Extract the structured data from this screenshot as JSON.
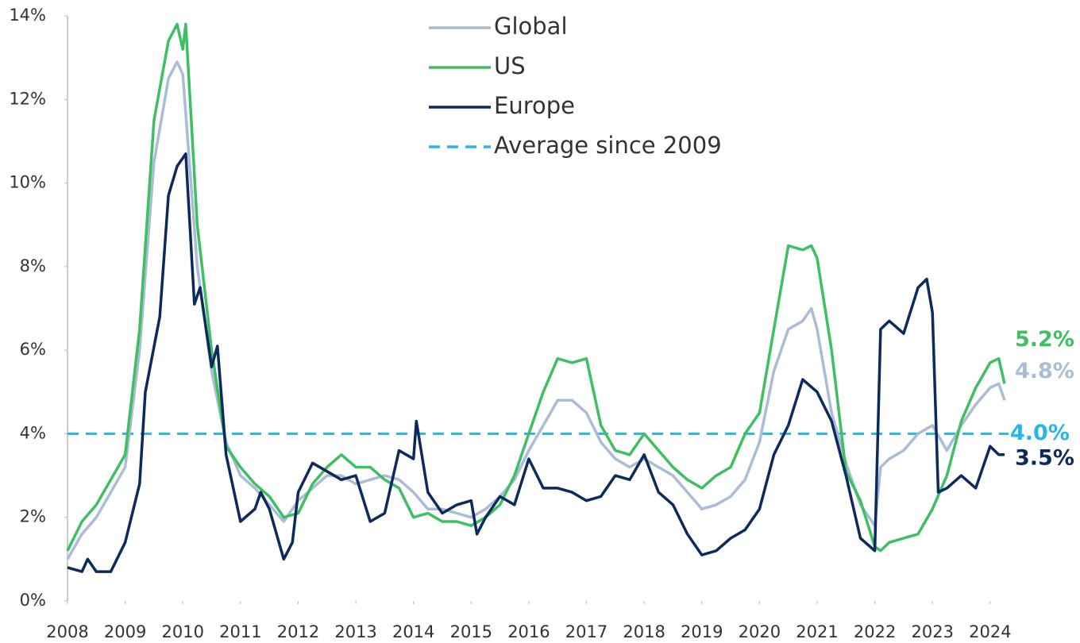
{
  "chart_data": {
    "type": "line",
    "xlim": [
      2008,
      2024.25
    ],
    "xticks": [
      2008,
      2009,
      2010,
      2011,
      2012,
      2013,
      2014,
      2015,
      2016,
      2017,
      2018,
      2019,
      2020,
      2021,
      2022,
      2023,
      2024
    ],
    "ylim": [
      0,
      14
    ],
    "yticks": [
      {
        "value": 0,
        "label": "0%"
      },
      {
        "value": 2,
        "label": "2%"
      },
      {
        "value": 4,
        "label": "4%"
      },
      {
        "value": 6,
        "label": "6%"
      },
      {
        "value": 8,
        "label": "8%"
      },
      {
        "value": 10,
        "label": "10%"
      },
      {
        "value": 12,
        "label": "12%"
      },
      {
        "value": 14,
        "label": "14%"
      }
    ],
    "legend": "top",
    "series": [
      {
        "name": "Global",
        "color": "#aabcd6",
        "last_label": "4.8%",
        "x": [
          2008,
          2008.25,
          2008.5,
          2008.75,
          2009,
          2009.25,
          2009.5,
          2009.75,
          2009.9,
          2010,
          2010.25,
          2010.5,
          2010.75,
          2011,
          2011.25,
          2011.5,
          2011.75,
          2012,
          2012.25,
          2012.5,
          2012.75,
          2013,
          2013.25,
          2013.5,
          2013.75,
          2014,
          2014.25,
          2014.5,
          2014.75,
          2015,
          2015.25,
          2015.5,
          2015.75,
          2016,
          2016.25,
          2016.5,
          2016.75,
          2017,
          2017.25,
          2017.5,
          2017.75,
          2018,
          2018.25,
          2018.5,
          2018.75,
          2019,
          2019.25,
          2019.5,
          2019.75,
          2020,
          2020.25,
          2020.5,
          2020.75,
          2020.9,
          2021,
          2021.25,
          2021.5,
          2021.75,
          2022,
          2022.1,
          2022.25,
          2022.5,
          2022.75,
          2023,
          2023.25,
          2023.5,
          2023.75,
          2024,
          2024.15,
          2024.25
        ],
        "values": [
          1.0,
          1.6,
          2.0,
          2.6,
          3.2,
          6.0,
          10.5,
          12.5,
          12.9,
          12.6,
          8.0,
          5.5,
          3.8,
          3.0,
          2.7,
          2.3,
          1.9,
          2.4,
          2.7,
          3.0,
          3.0,
          2.8,
          2.9,
          3.0,
          2.9,
          2.6,
          2.2,
          2.2,
          2.1,
          2.0,
          2.2,
          2.5,
          2.9,
          3.6,
          4.2,
          4.8,
          4.8,
          4.5,
          3.8,
          3.4,
          3.2,
          3.4,
          3.2,
          3.0,
          2.6,
          2.2,
          2.3,
          2.5,
          2.9,
          3.8,
          5.5,
          6.5,
          6.7,
          7.0,
          6.5,
          4.5,
          3.3,
          2.3,
          1.8,
          3.2,
          3.4,
          3.6,
          4.0,
          4.2,
          3.6,
          4.2,
          4.7,
          5.1,
          5.2,
          4.8
        ]
      },
      {
        "name": "US",
        "color": "#3dbf62",
        "last_label": "5.2%",
        "x": [
          2008,
          2008.25,
          2008.5,
          2008.75,
          2009,
          2009.25,
          2009.5,
          2009.75,
          2009.9,
          2010,
          2010.05,
          2010.25,
          2010.5,
          2010.75,
          2011,
          2011.25,
          2011.5,
          2011.75,
          2012,
          2012.25,
          2012.5,
          2012.75,
          2013,
          2013.25,
          2013.5,
          2013.75,
          2014,
          2014.25,
          2014.5,
          2014.75,
          2015,
          2015.25,
          2015.5,
          2015.75,
          2016,
          2016.25,
          2016.5,
          2016.75,
          2017,
          2017.25,
          2017.5,
          2017.75,
          2018,
          2018.25,
          2018.5,
          2018.75,
          2019,
          2019.25,
          2019.5,
          2019.75,
          2020,
          2020.25,
          2020.5,
          2020.75,
          2020.9,
          2021,
          2021.25,
          2021.5,
          2021.75,
          2022,
          2022.1,
          2022.25,
          2022.5,
          2022.75,
          2023,
          2023.25,
          2023.5,
          2023.75,
          2024,
          2024.15,
          2024.25
        ],
        "values": [
          1.2,
          1.9,
          2.3,
          2.9,
          3.5,
          6.5,
          11.5,
          13.4,
          13.8,
          13.2,
          13.8,
          9.0,
          6.0,
          3.7,
          3.2,
          2.8,
          2.5,
          2.0,
          2.1,
          2.8,
          3.2,
          3.5,
          3.2,
          3.2,
          2.9,
          2.7,
          2.0,
          2.1,
          1.9,
          1.9,
          1.8,
          2.0,
          2.3,
          3.0,
          4.0,
          5.0,
          5.8,
          5.7,
          5.8,
          4.2,
          3.6,
          3.5,
          4.0,
          3.6,
          3.2,
          2.9,
          2.7,
          3.0,
          3.2,
          4.0,
          4.5,
          6.5,
          8.5,
          8.4,
          8.5,
          8.2,
          6.0,
          3.1,
          2.4,
          1.3,
          1.2,
          1.4,
          1.5,
          1.6,
          2.2,
          3.0,
          4.3,
          5.1,
          5.7,
          5.8,
          5.2
        ]
      },
      {
        "name": "Europe",
        "color": "#0c2a5e",
        "last_label": "3.5%",
        "x": [
          2008,
          2008.25,
          2008.35,
          2008.5,
          2008.75,
          2009,
          2009.25,
          2009.35,
          2009.6,
          2009.75,
          2009.9,
          2010.05,
          2010.2,
          2010.3,
          2010.5,
          2010.6,
          2010.75,
          2011,
          2011.25,
          2011.35,
          2011.5,
          2011.75,
          2011.9,
          2012,
          2012.25,
          2012.5,
          2012.75,
          2013,
          2013.25,
          2013.5,
          2013.75,
          2014,
          2014.05,
          2014.25,
          2014.5,
          2014.75,
          2015,
          2015.1,
          2015.25,
          2015.5,
          2015.75,
          2016,
          2016.25,
          2016.5,
          2016.75,
          2017,
          2017.25,
          2017.5,
          2017.75,
          2018,
          2018.25,
          2018.5,
          2018.75,
          2019,
          2019.25,
          2019.5,
          2019.75,
          2020,
          2020.25,
          2020.5,
          2020.75,
          2021,
          2021.25,
          2021.5,
          2021.75,
          2022,
          2022.1,
          2022.25,
          2022.5,
          2022.75,
          2022.9,
          2023,
          2023.1,
          2023.25,
          2023.5,
          2023.75,
          2024,
          2024.15,
          2024.25
        ],
        "values": [
          0.8,
          0.7,
          1.0,
          0.7,
          0.7,
          1.4,
          2.8,
          5.0,
          6.8,
          9.7,
          10.4,
          10.7,
          7.1,
          7.5,
          5.6,
          6.1,
          3.5,
          1.9,
          2.2,
          2.6,
          2.2,
          1.0,
          1.4,
          2.6,
          3.3,
          3.1,
          2.9,
          3.0,
          1.9,
          2.1,
          3.6,
          3.4,
          4.3,
          2.6,
          2.1,
          2.3,
          2.4,
          1.6,
          2.0,
          2.5,
          2.3,
          3.4,
          2.7,
          2.7,
          2.6,
          2.4,
          2.5,
          3.0,
          2.9,
          3.5,
          2.6,
          2.3,
          1.6,
          1.1,
          1.2,
          1.5,
          1.7,
          2.2,
          3.5,
          4.2,
          5.3,
          5.0,
          4.3,
          3.0,
          1.5,
          1.2,
          6.5,
          6.7,
          6.4,
          7.5,
          7.7,
          6.9,
          2.6,
          2.7,
          3.0,
          2.7,
          3.7,
          3.5,
          3.5
        ]
      }
    ],
    "reference_line": {
      "name": "Average since 2009",
      "value": 4.0,
      "label": "4.0%",
      "color": "#29b5e8",
      "dash": true
    }
  }
}
